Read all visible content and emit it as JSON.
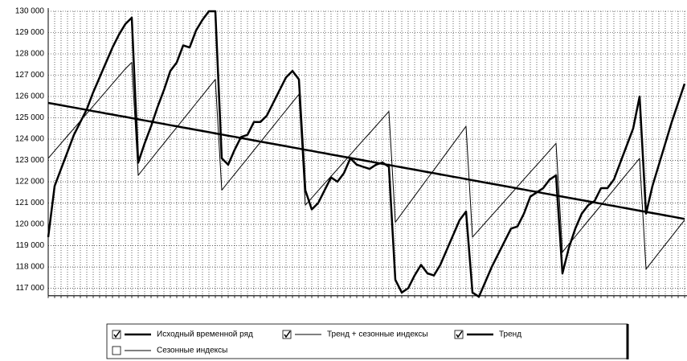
{
  "chart_data": {
    "type": "line",
    "categories": [
      null,
      null,
      null,
      null,
      null,
      null,
      null,
      null,
      null,
      null,
      null,
      null,
      null,
      null,
      null,
      null,
      null,
      null,
      null,
      null,
      null,
      null,
      null,
      null,
      null,
      null,
      null,
      null,
      null,
      null,
      null,
      null,
      null,
      null,
      null,
      null,
      null,
      null,
      null,
      null,
      null,
      null,
      null,
      null,
      null,
      null,
      null,
      null,
      null,
      null,
      null,
      null,
      null,
      null,
      null,
      null,
      null,
      null,
      null,
      null,
      null,
      null,
      null,
      null,
      null,
      null,
      null,
      null,
      null,
      null,
      null,
      null,
      null,
      null,
      null,
      null,
      null,
      null,
      null,
      null,
      null,
      null,
      null,
      null,
      null,
      null,
      null,
      null,
      null,
      null,
      null,
      null,
      null,
      null,
      null,
      null,
      null,
      null,
      null,
      null
    ],
    "ylim": [
      116650,
      130000
    ],
    "yticks": [
      {
        "value": 117000,
        "label": "117 000"
      },
      {
        "value": 118000,
        "label": "118 000"
      },
      {
        "value": 119000,
        "label": "119 000"
      },
      {
        "value": 120000,
        "label": "120 000"
      },
      {
        "value": 121000,
        "label": "121 000"
      },
      {
        "value": 122000,
        "label": "122 000"
      },
      {
        "value": 123000,
        "label": "123 000"
      },
      {
        "value": 124000,
        "label": "124 000"
      },
      {
        "value": 125000,
        "label": "125 000"
      },
      {
        "value": 126000,
        "label": "126 000"
      },
      {
        "value": 127000,
        "label": "127 000"
      },
      {
        "value": 128000,
        "label": "128 000"
      },
      {
        "value": 129000,
        "label": "129 000"
      },
      {
        "value": 130000,
        "label": "130 000"
      }
    ],
    "grid": true,
    "series": [
      {
        "name": "Исходный временной ряд",
        "color": "#000000",
        "line_width": 2.5,
        "checked": true,
        "values": [
          119400,
          121800,
          122600,
          123400,
          124200,
          124800,
          125400,
          126200,
          126900,
          127600,
          128300,
          128900,
          129400,
          129700,
          122900,
          123800,
          124600,
          125500,
          126300,
          127200,
          127600,
          128400,
          128300,
          129100,
          129600,
          130000,
          130000,
          123100,
          122800,
          123500,
          124100,
          124200,
          124800,
          124800,
          125100,
          125700,
          126300,
          126900,
          127200,
          126800,
          121600,
          120700,
          121000,
          121600,
          122200,
          122000,
          122400,
          123100,
          122800,
          122700,
          122600,
          122800,
          122900,
          122700,
          117400,
          116800,
          117000,
          117600,
          118100,
          117700,
          117600,
          118100,
          118800,
          119500,
          120200,
          120600,
          116800,
          116600,
          117300,
          118000,
          118600,
          119200,
          119800,
          119900,
          120500,
          121300,
          121500,
          121700,
          122100,
          122300,
          117700,
          118900,
          119800,
          120500,
          120900,
          121100,
          121700,
          121700,
          122100,
          122900,
          123700,
          124500,
          126000,
          120500,
          121800,
          122800,
          123800,
          124800,
          125700,
          126600
        ]
      },
      {
        "name": "Тренд + сезонные индексы",
        "color": "#000000",
        "line_width": 1,
        "checked": true,
        "values": [
          123100,
          123450,
          123800,
          124150,
          124500,
          124850,
          125200,
          125550,
          125900,
          126250,
          126600,
          126950,
          127300,
          127600,
          122300,
          122680,
          123050,
          123430,
          123800,
          124180,
          124550,
          124930,
          125300,
          125680,
          126050,
          126430,
          126800,
          121600,
          121980,
          122350,
          122730,
          123100,
          123480,
          123850,
          124230,
          124600,
          124980,
          125350,
          125730,
          126100,
          120900,
          121240,
          121580,
          121920,
          122250,
          122590,
          122930,
          123270,
          123610,
          123950,
          124280,
          124620,
          124960,
          125300,
          120100,
          120510,
          120920,
          121330,
          121740,
          122150,
          122550,
          122960,
          123370,
          123780,
          124190,
          124600,
          119400,
          119740,
          120080,
          120420,
          120750,
          121090,
          121430,
          121770,
          122110,
          122450,
          122780,
          123120,
          123460,
          123800,
          118700,
          119070,
          119430,
          119800,
          120170,
          120530,
          120900,
          121270,
          121630,
          122000,
          122370,
          122730,
          123100,
          117900,
          118280,
          118670,
          119050,
          119430,
          119820,
          120200
        ]
      },
      {
        "name": "Тренд",
        "color": "#000000",
        "line_width": 2.5,
        "checked": true,
        "values": [
          125700,
          125645,
          125590,
          125535,
          125480,
          125425,
          125370,
          125315,
          125260,
          125205,
          125150,
          125095,
          125040,
          124985,
          124930,
          124875,
          124820,
          124765,
          124710,
          124655,
          124600,
          124545,
          124490,
          124435,
          124380,
          124325,
          124270,
          124215,
          124160,
          124105,
          124050,
          123995,
          123940,
          123885,
          123830,
          123775,
          123720,
          123665,
          123610,
          123555,
          123500,
          123445,
          123390,
          123335,
          123280,
          123225,
          123170,
          123115,
          123060,
          123005,
          122950,
          122895,
          122840,
          122785,
          122730,
          122675,
          122620,
          122565,
          122510,
          122455,
          122400,
          122345,
          122290,
          122235,
          122180,
          122125,
          122070,
          122015,
          121960,
          121905,
          121850,
          121795,
          121740,
          121685,
          121630,
          121575,
          121520,
          121465,
          121410,
          121355,
          121300,
          121245,
          121190,
          121135,
          121080,
          121025,
          120970,
          120915,
          120860,
          120805,
          120750,
          120695,
          120640,
          120585,
          120530,
          120475,
          120420,
          120365,
          120310,
          120255
        ]
      }
    ],
    "unchecked_series": [
      {
        "name": "Сезонные индексы",
        "line_width": 1,
        "checked": false
      }
    ]
  }
}
